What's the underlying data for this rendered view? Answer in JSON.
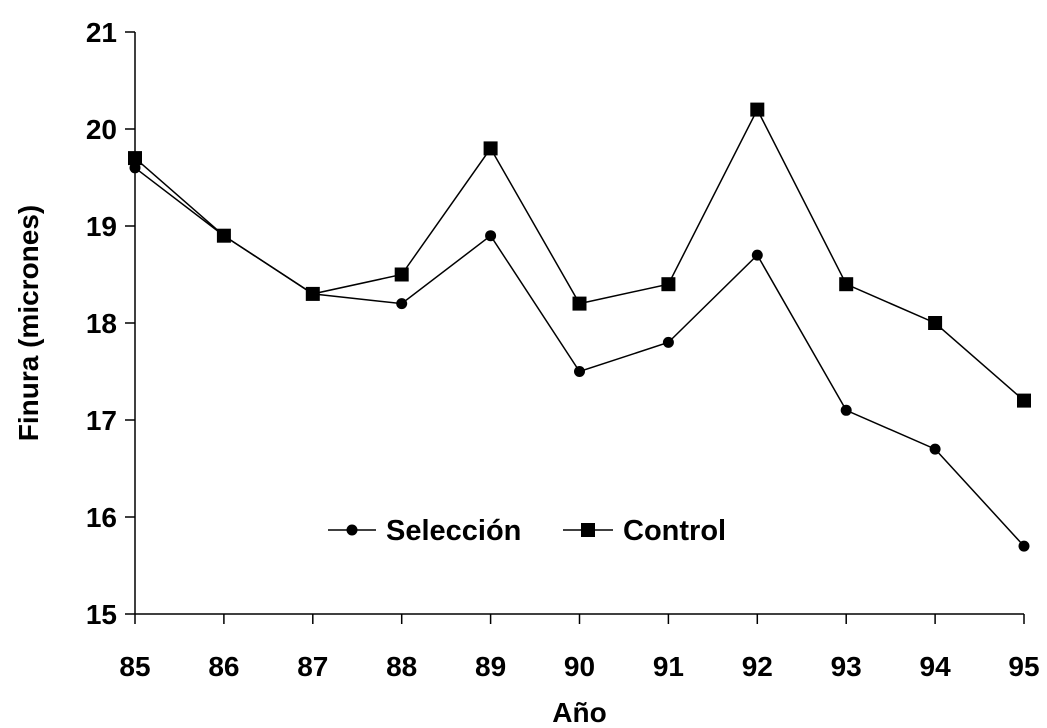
{
  "chart_data": {
    "type": "line",
    "xlabel": "Año",
    "ylabel": "Finura (micrones)",
    "x": [
      "85",
      "86",
      "87",
      "88",
      "89",
      "90",
      "91",
      "92",
      "93",
      "94",
      "95"
    ],
    "ylim": [
      15,
      21
    ],
    "yticks": [
      15,
      16,
      17,
      18,
      19,
      20,
      21
    ],
    "grid": false,
    "legend_position": "inside-lower-center",
    "series": [
      {
        "name": "Selección",
        "marker": "circle",
        "color": "#000000",
        "values": [
          19.6,
          18.9,
          18.3,
          18.2,
          18.9,
          17.5,
          17.8,
          18.7,
          17.1,
          16.7,
          15.7
        ]
      },
      {
        "name": "Control",
        "marker": "square",
        "color": "#000000",
        "values": [
          19.7,
          18.9,
          18.3,
          18.5,
          19.8,
          18.2,
          18.4,
          20.2,
          18.4,
          18.0,
          17.2
        ]
      }
    ]
  }
}
